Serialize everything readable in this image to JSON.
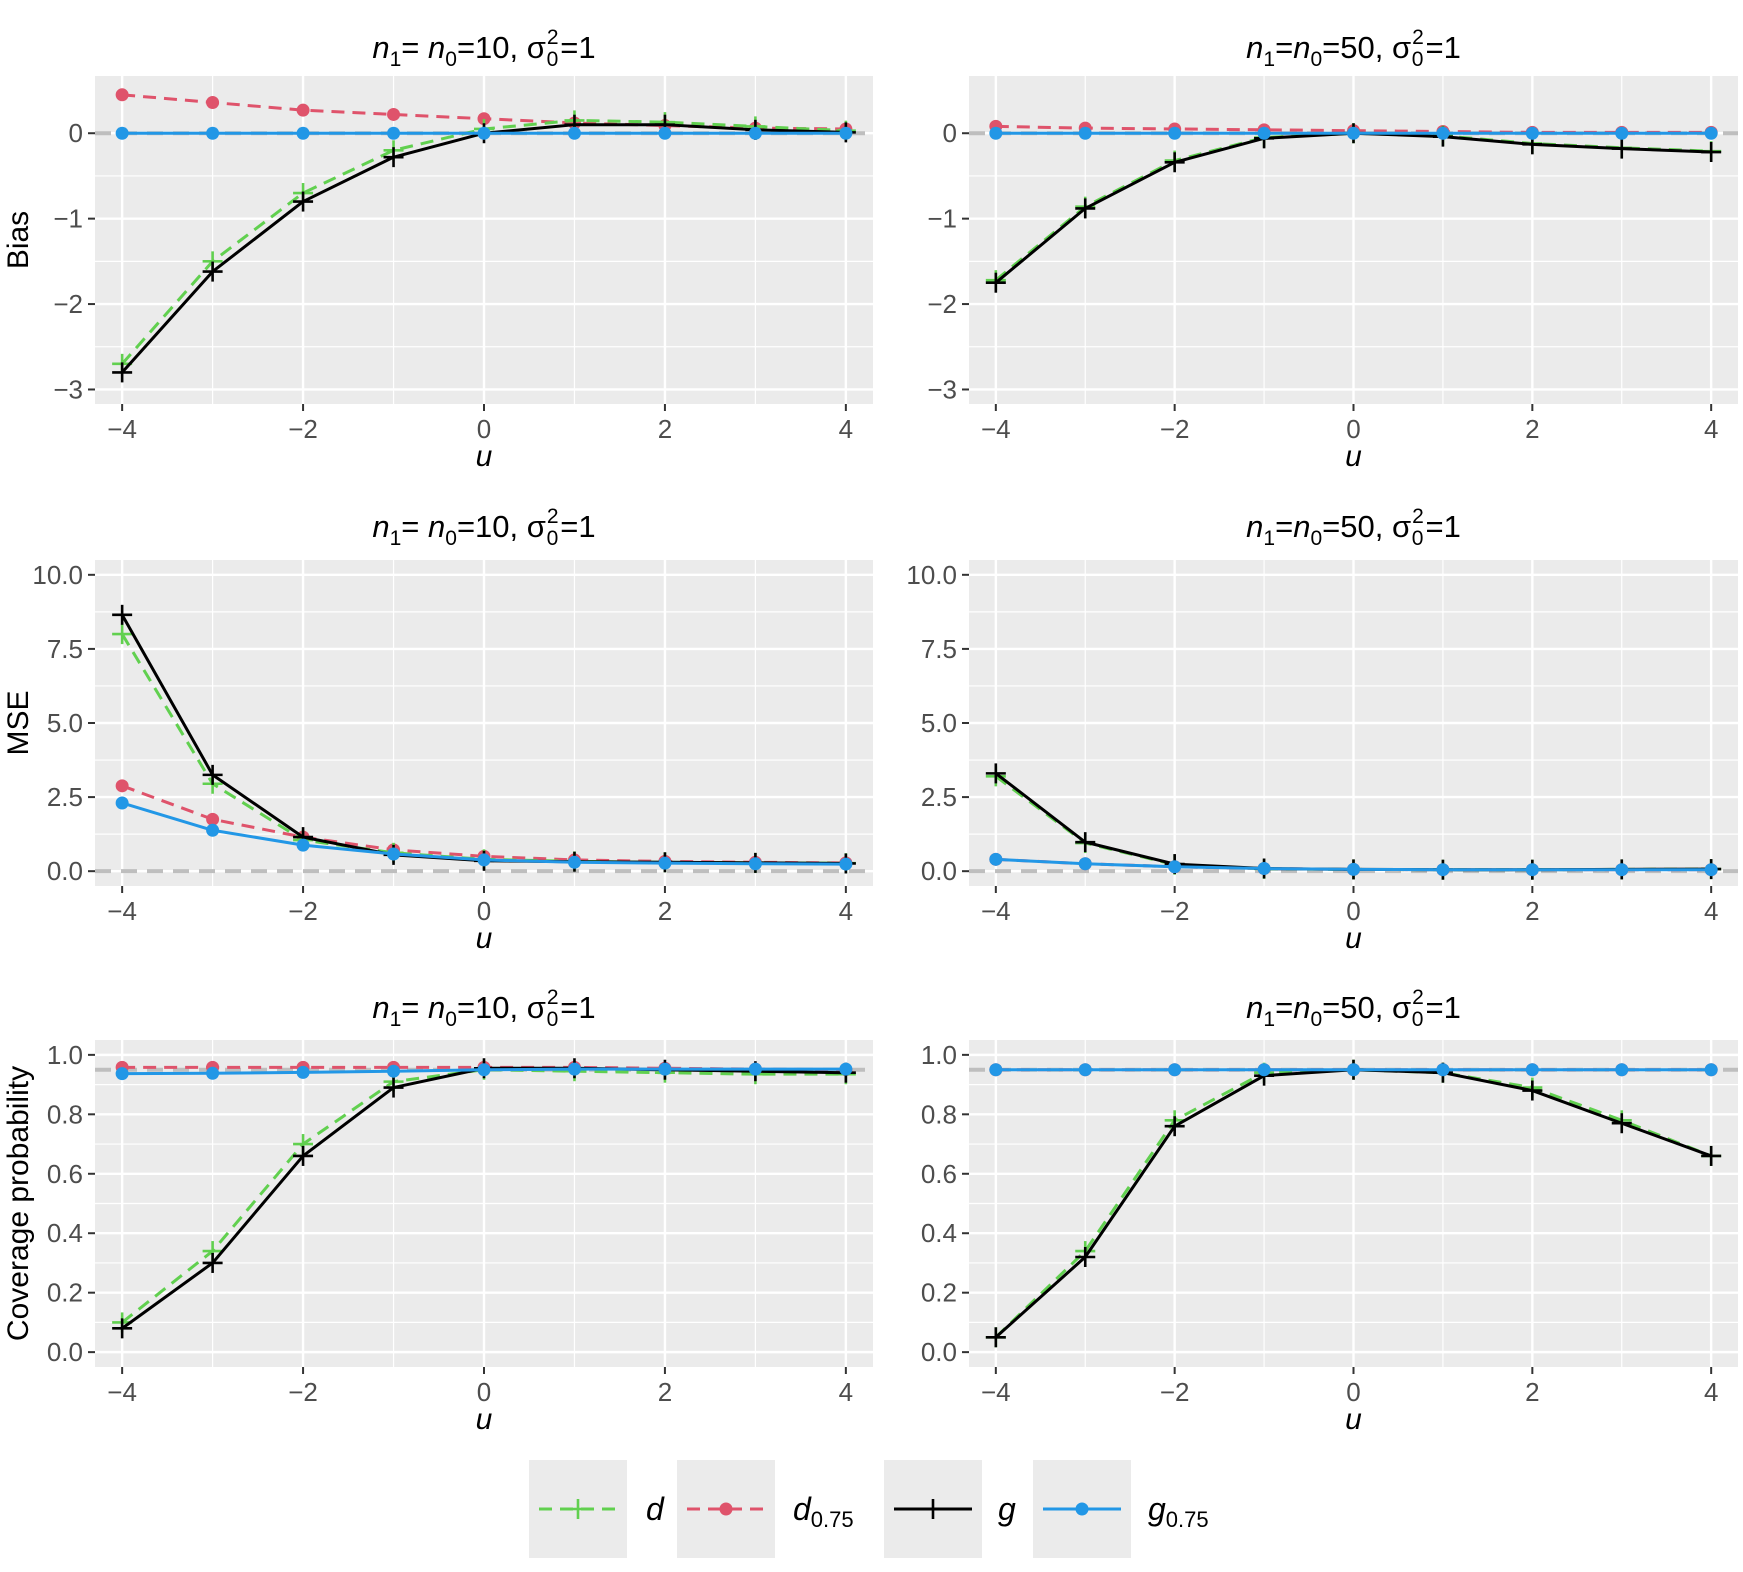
{
  "colors": {
    "d": "#61D04F",
    "d075": "#DF536B",
    "g": "#000000",
    "g075": "#2297E6",
    "panel_bg": "#EBEBEB",
    "grid": "#FFFFFF",
    "ref_line": "#BEBEBE"
  },
  "legend": {
    "items": [
      {
        "key": "d",
        "label": "d",
        "sub": "",
        "marker": "plus",
        "dashed": true
      },
      {
        "key": "d075",
        "label": "d",
        "sub": "0.75",
        "marker": "dot",
        "dashed": true
      },
      {
        "key": "g",
        "label": "g",
        "sub": "",
        "marker": "plus",
        "dashed": false
      },
      {
        "key": "g075",
        "label": "g",
        "sub": "0.75",
        "marker": "dot",
        "dashed": false
      }
    ]
  },
  "chart_data": [
    {
      "type": "line",
      "title": {
        "left": "n",
        "left_sub": "1",
        "mid": "= n",
        "mid_sub": "0",
        "eq": "=10, σ",
        "sup": "2",
        "sub": "0",
        "tail": "=1"
      },
      "ylabel": "Bias",
      "xlabel": "u",
      "xlim": [
        -4.3,
        4.3
      ],
      "ylim": [
        -3.17,
        0.67
      ],
      "xticks": [
        -4,
        -2,
        0,
        2,
        4
      ],
      "xtick_labels": [
        "−4",
        "−2",
        "0",
        "2",
        "4"
      ],
      "yticks": [
        -3,
        -2,
        -1,
        0
      ],
      "ytick_labels": [
        "−3",
        "−2",
        "−1",
        "0"
      ],
      "ref_line": 0,
      "x": [
        -4,
        -3,
        -2,
        -1,
        0,
        1,
        2,
        3,
        4
      ],
      "series": [
        {
          "key": "d",
          "name": "d",
          "values": [
            -2.7,
            -1.5,
            -0.7,
            -0.2,
            0.05,
            0.15,
            0.13,
            0.08,
            0.03
          ]
        },
        {
          "key": "d075",
          "name": "d0.75",
          "values": [
            0.45,
            0.36,
            0.27,
            0.22,
            0.17,
            0.12,
            0.09,
            0.06,
            0.05
          ]
        },
        {
          "key": "g",
          "name": "g",
          "values": [
            -2.8,
            -1.62,
            -0.8,
            -0.28,
            0.0,
            0.1,
            0.1,
            0.04,
            0.01
          ]
        },
        {
          "key": "g075",
          "name": "g0.75",
          "values": [
            0.0,
            0.0,
            0.0,
            0.0,
            0.0,
            0.0,
            0.0,
            0.0,
            0.0
          ]
        }
      ]
    },
    {
      "type": "line",
      "title": {
        "left": "n",
        "left_sub": "1",
        "mid": "=n",
        "mid_sub": "0",
        "eq": "=50, σ",
        "sup": "2",
        "sub": "0",
        "tail": "=1"
      },
      "ylabel": "",
      "xlabel": "u",
      "xlim": [
        -4.3,
        4.3
      ],
      "ylim": [
        -3.17,
        0.67
      ],
      "xticks": [
        -4,
        -2,
        0,
        2,
        4
      ],
      "xtick_labels": [
        "−4",
        "−2",
        "0",
        "2",
        "4"
      ],
      "yticks": [
        -3,
        -2,
        -1,
        0
      ],
      "ytick_labels": [
        "−3",
        "−2",
        "−1",
        "0"
      ],
      "ref_line": 0,
      "x": [
        -4,
        -3,
        -2,
        -1,
        0,
        1,
        2,
        3,
        4
      ],
      "series": [
        {
          "key": "d",
          "name": "d",
          "values": [
            -1.72,
            -0.86,
            -0.32,
            -0.05,
            0.0,
            -0.03,
            -0.12,
            -0.17,
            -0.21
          ]
        },
        {
          "key": "d075",
          "name": "d0.75",
          "values": [
            0.08,
            0.06,
            0.05,
            0.04,
            0.03,
            0.02,
            0.01,
            0.01,
            0.01
          ]
        },
        {
          "key": "g",
          "name": "g",
          "values": [
            -1.75,
            -0.88,
            -0.34,
            -0.06,
            0.0,
            -0.04,
            -0.13,
            -0.18,
            -0.22
          ]
        },
        {
          "key": "g075",
          "name": "g0.75",
          "values": [
            0.0,
            0.0,
            0.0,
            0.0,
            0.0,
            0.0,
            0.0,
            0.0,
            0.0
          ]
        }
      ]
    },
    {
      "type": "line",
      "title": {
        "left": "n",
        "left_sub": "1",
        "mid": "= n",
        "mid_sub": "0",
        "eq": "=10, σ",
        "sup": "2",
        "sub": "0",
        "tail": "=1"
      },
      "ylabel": "MSE",
      "xlabel": "u",
      "xlim": [
        -4.3,
        4.3
      ],
      "ylim": [
        -0.5,
        10.5
      ],
      "xticks": [
        -4,
        -2,
        0,
        2,
        4
      ],
      "xtick_labels": [
        "−4",
        "−2",
        "0",
        "2",
        "4"
      ],
      "yticks": [
        0,
        2.5,
        5,
        7.5,
        10
      ],
      "ytick_labels": [
        "0.0",
        "2.5",
        "5.0",
        "7.5",
        "10.0"
      ],
      "ref_line": 0,
      "x": [
        -4,
        -3,
        -2,
        -1,
        0,
        1,
        2,
        3,
        4
      ],
      "series": [
        {
          "key": "d",
          "name": "d",
          "values": [
            8.0,
            2.95,
            1.05,
            0.62,
            0.4,
            0.33,
            0.3,
            0.28,
            0.27
          ]
        },
        {
          "key": "d075",
          "name": "d0.75",
          "values": [
            2.88,
            1.75,
            1.15,
            0.72,
            0.5,
            0.38,
            0.33,
            0.3,
            0.28
          ]
        },
        {
          "key": "g",
          "name": "g",
          "values": [
            8.65,
            3.25,
            1.15,
            0.55,
            0.35,
            0.32,
            0.3,
            0.28,
            0.26
          ]
        },
        {
          "key": "g075",
          "name": "g0.75",
          "values": [
            2.3,
            1.38,
            0.88,
            0.58,
            0.38,
            0.3,
            0.27,
            0.25,
            0.24
          ]
        }
      ]
    },
    {
      "type": "line",
      "title": {
        "left": "n",
        "left_sub": "1",
        "mid": "=n",
        "mid_sub": "0",
        "eq": "=50, σ",
        "sup": "2",
        "sub": "0",
        "tail": "=1"
      },
      "ylabel": "",
      "xlabel": "u",
      "xlim": [
        -4.3,
        4.3
      ],
      "ylim": [
        -0.5,
        10.5
      ],
      "xticks": [
        -4,
        -2,
        0,
        2,
        4
      ],
      "xtick_labels": [
        "−4",
        "−2",
        "0",
        "2",
        "4"
      ],
      "yticks": [
        0,
        2.5,
        5,
        7.5,
        10
      ],
      "ytick_labels": [
        "0.0",
        "2.5",
        "5.0",
        "7.5",
        "10.0"
      ],
      "ref_line": 0,
      "x": [
        -4,
        -3,
        -2,
        -1,
        0,
        1,
        2,
        3,
        4
      ],
      "series": [
        {
          "key": "d",
          "name": "d",
          "values": [
            3.2,
            0.95,
            0.22,
            0.08,
            0.06,
            0.05,
            0.05,
            0.06,
            0.07
          ]
        },
        {
          "key": "d075",
          "name": "d0.75",
          "values": [
            0.4,
            0.25,
            0.15,
            0.09,
            0.06,
            0.05,
            0.05,
            0.05,
            0.05
          ]
        },
        {
          "key": "g",
          "name": "g",
          "values": [
            3.3,
            0.98,
            0.24,
            0.09,
            0.06,
            0.05,
            0.05,
            0.06,
            0.07
          ]
        },
        {
          "key": "g075",
          "name": "g0.75",
          "values": [
            0.4,
            0.25,
            0.15,
            0.09,
            0.06,
            0.05,
            0.05,
            0.05,
            0.05
          ]
        }
      ]
    },
    {
      "type": "line",
      "title": {
        "left": "n",
        "left_sub": "1",
        "mid": "= n",
        "mid_sub": "0",
        "eq": "=10, σ",
        "sup": "2",
        "sub": "0",
        "tail": "=1"
      },
      "ylabel": "Coverage probability",
      "xlabel": "u",
      "xlim": [
        -4.3,
        4.3
      ],
      "ylim": [
        -0.05,
        1.05
      ],
      "xticks": [
        -4,
        -2,
        0,
        2,
        4
      ],
      "xtick_labels": [
        "−4",
        "−2",
        "0",
        "2",
        "4"
      ],
      "yticks": [
        0,
        0.2,
        0.4,
        0.6,
        0.8,
        1.0
      ],
      "ytick_labels": [
        "0.0",
        "0.2",
        "0.4",
        "0.6",
        "0.8",
        "1.0"
      ],
      "ref_line": 0.95,
      "x": [
        -4,
        -3,
        -2,
        -1,
        0,
        1,
        2,
        3,
        4
      ],
      "series": [
        {
          "key": "d",
          "name": "d",
          "values": [
            0.1,
            0.34,
            0.7,
            0.91,
            0.95,
            0.945,
            0.94,
            0.935,
            0.935
          ]
        },
        {
          "key": "d075",
          "name": "d0.75",
          "values": [
            0.958,
            0.958,
            0.958,
            0.958,
            0.958,
            0.958,
            0.955,
            0.952,
            0.95
          ]
        },
        {
          "key": "g",
          "name": "g",
          "values": [
            0.08,
            0.3,
            0.66,
            0.89,
            0.955,
            0.955,
            0.95,
            0.945,
            0.94
          ]
        },
        {
          "key": "g075",
          "name": "g0.75",
          "values": [
            0.937,
            0.938,
            0.941,
            0.945,
            0.95,
            0.952,
            0.952,
            0.952,
            0.952
          ]
        }
      ]
    },
    {
      "type": "line",
      "title": {
        "left": "n",
        "left_sub": "1",
        "mid": "=n",
        "mid_sub": "0",
        "eq": "=50, σ",
        "sup": "2",
        "sub": "0",
        "tail": "=1"
      },
      "ylabel": "",
      "xlabel": "u",
      "xlim": [
        -4.3,
        4.3
      ],
      "ylim": [
        -0.05,
        1.05
      ],
      "xticks": [
        -4,
        -2,
        0,
        2,
        4
      ],
      "xtick_labels": [
        "−4",
        "−2",
        "0",
        "2",
        "4"
      ],
      "yticks": [
        0,
        0.2,
        0.4,
        0.6,
        0.8,
        1.0
      ],
      "ytick_labels": [
        "0.0",
        "0.2",
        "0.4",
        "0.6",
        "0.8",
        "1.0"
      ],
      "ref_line": 0.95,
      "x": [
        -4,
        -3,
        -2,
        -1,
        0,
        1,
        2,
        3,
        4
      ],
      "series": [
        {
          "key": "d",
          "name": "d",
          "values": [
            0.05,
            0.34,
            0.78,
            0.94,
            0.95,
            0.94,
            0.89,
            0.78,
            0.66
          ]
        },
        {
          "key": "d075",
          "name": "d0.75",
          "values": [
            0.95,
            0.95,
            0.95,
            0.95,
            0.95,
            0.95,
            0.95,
            0.95,
            0.95
          ]
        },
        {
          "key": "g",
          "name": "g",
          "values": [
            0.05,
            0.32,
            0.76,
            0.93,
            0.95,
            0.94,
            0.88,
            0.77,
            0.66
          ]
        },
        {
          "key": "g075",
          "name": "g0.75",
          "values": [
            0.95,
            0.95,
            0.95,
            0.95,
            0.95,
            0.95,
            0.95,
            0.95,
            0.95
          ]
        }
      ]
    }
  ]
}
